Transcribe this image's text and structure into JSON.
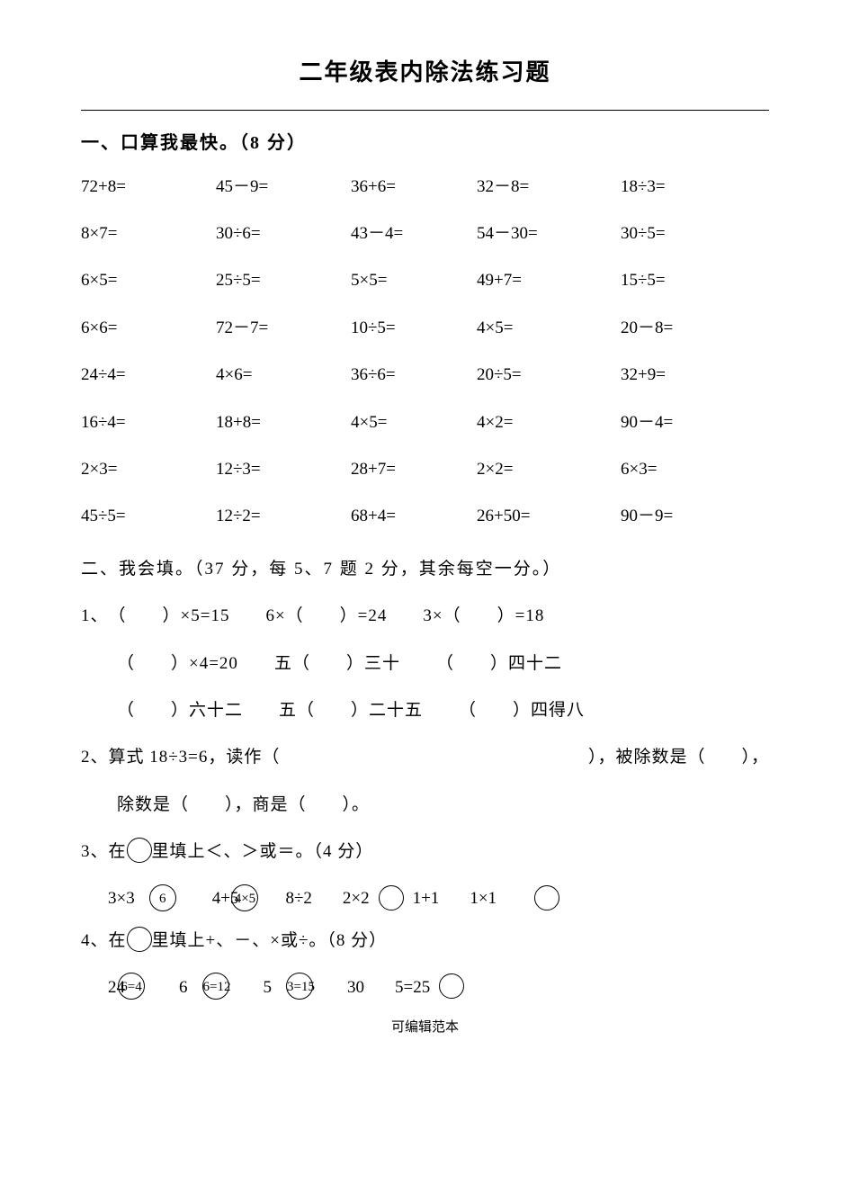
{
  "title": "二年级表内除法练习题",
  "section1": {
    "heading": "一、口算我最快。（8 分）",
    "rows": [
      [
        "72+8=",
        "45－9=",
        "36+6=",
        "32－8=",
        "18÷3="
      ],
      [
        "8×7=",
        "30÷6=",
        "43－4=",
        "54－30=",
        "30÷5="
      ],
      [
        "6×5=",
        "25÷5=",
        "5×5=",
        "49+7=",
        "15÷5="
      ],
      [
        "6×6=",
        "72－7=",
        "10÷5=",
        "4×5=",
        "20－8="
      ],
      [
        "24÷4=",
        "4×6=",
        "36÷6=",
        "20÷5=",
        "32+9="
      ],
      [
        "16÷4=",
        "18+8=",
        "4×5=",
        "4×2=",
        "90－4="
      ],
      [
        "2×3=",
        "12÷3=",
        "28+7=",
        "2×2=",
        "6×3="
      ],
      [
        "45÷5=",
        "12÷2=",
        "68+4=",
        "26+50=",
        "90－9="
      ]
    ]
  },
  "section2": {
    "heading": "二、我会填。（37 分，每 5、7 题 2 分，其余每空一分。）",
    "q1": {
      "label": "1、",
      "row1": [
        "（　　）×5=15",
        "6×（　　）=24",
        "3×（　　）=18"
      ],
      "row2": [
        "（　　）×4=20",
        "五（　　）三十",
        "（　　）四十二"
      ],
      "row3": [
        "（　　）六十二",
        "五（　　）二十五",
        "（　　）四得八"
      ]
    },
    "q2": {
      "line1_a": "2、算式 18÷3=6，读作（",
      "line1_b": "），被除数是（　　），",
      "line2": "除数是（　　），商是（　　）。"
    },
    "q3": {
      "label": "3、在",
      "rest": "里填上＜、＞或＝。（4 分）",
      "items": [
        {
          "left": "3×3",
          "inside": "6"
        },
        {
          "left": "4+5",
          "inside": "4×5",
          "overlap": true
        },
        {
          "left": "8÷2",
          "right": "2×2",
          "empty_after": true
        },
        {
          "left": "1+1",
          "right": "1×1",
          "trailing": true
        }
      ]
    },
    "q4": {
      "label": "4、在",
      "rest": "里填上+、－、×或÷。（8 分）",
      "items": [
        {
          "a": "24",
          "inside": "6=4",
          "overlap": true
        },
        {
          "a": "6",
          "b": "6=12",
          "overlap": true
        },
        {
          "a": "5",
          "b": "3=15",
          "overlap": true
        },
        {
          "a": "30",
          "b": "5=25",
          "trailing": true
        }
      ]
    }
  },
  "footer": "可编辑范本"
}
